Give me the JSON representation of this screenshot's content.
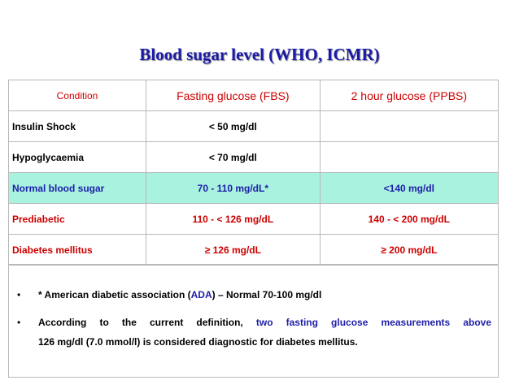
{
  "title": "Blood sugar level (WHO, ICMR)",
  "table": {
    "headers": [
      "Condition",
      "Fasting glucose (FBS)",
      "2 hour glucose (PPBS)"
    ],
    "rows": [
      {
        "condition": "Insulin Shock",
        "fbs": "< 50 mg/dl",
        "ppbs": ""
      },
      {
        "condition": "Hypoglycaemia",
        "fbs": "< 70 mg/dl",
        "ppbs": ""
      },
      {
        "condition": "Normal blood sugar",
        "fbs": "70 - 110 mg/dL*",
        "ppbs": "<140 mg/dl"
      },
      {
        "condition": "Prediabetic",
        "fbs": "110 - < 126 mg/dL",
        "ppbs": "140 -  < 200 mg/dL"
      },
      {
        "condition": "Diabetes mellitus",
        "fbs": "≥ 126 mg/dL",
        "ppbs": "≥ 200 mg/dL"
      }
    ]
  },
  "notes": {
    "bullet": "•",
    "note1": {
      "prefix": "* American  diabetic association (",
      "ada": "ADA",
      "suffix": ") – Normal 70-100 mg/dl"
    },
    "note2": {
      "line1_prefix": "According  to  the  current  definition,  ",
      "line1_blue": "two  fasting  glucose  measurements  above",
      "line2": "126 mg/dl (7.0 mmol/l) is considered diagnostic for diabetes mellitus."
    }
  },
  "colors": {
    "title": "#1a1aa8",
    "header": "#cc0000",
    "normal_row_bg": "#a8f2df",
    "normal_row_text": "#1e1ea8",
    "red_text": "#cc0000"
  }
}
